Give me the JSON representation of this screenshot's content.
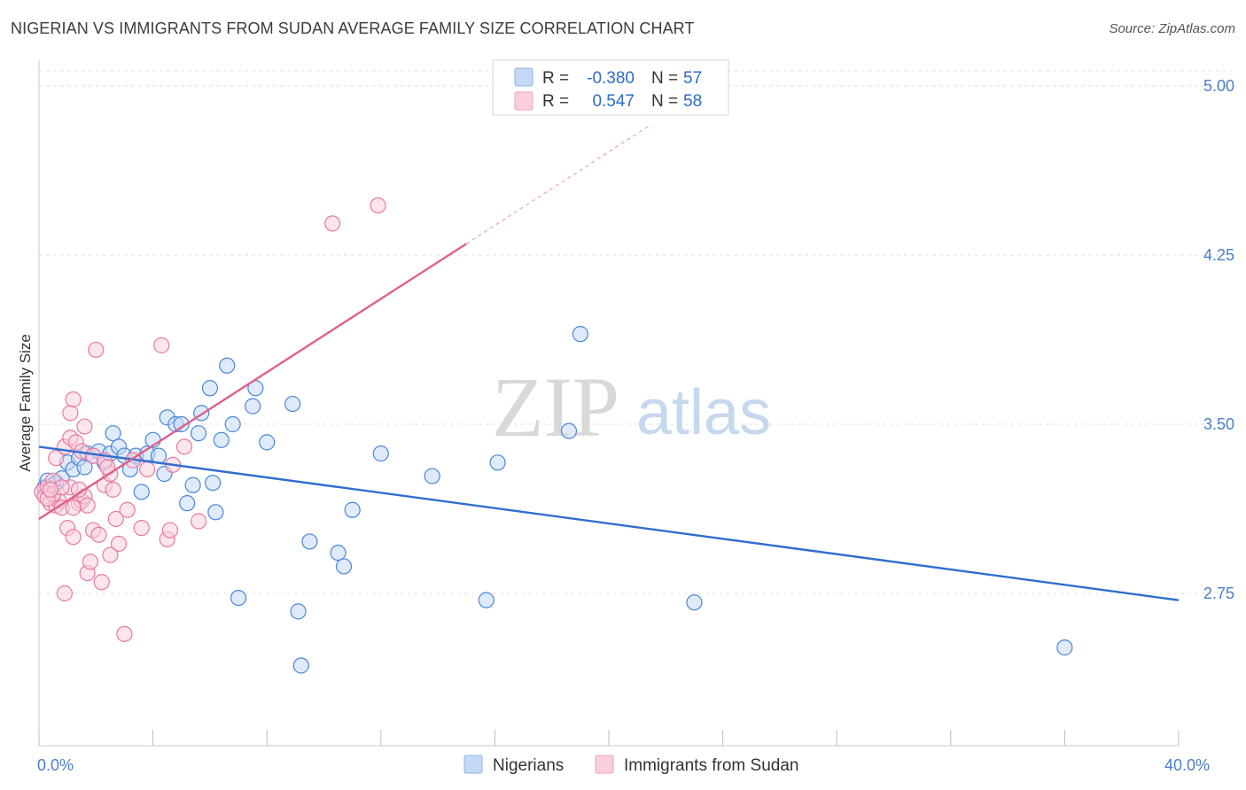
{
  "header": {
    "title": "NIGERIAN VS IMMIGRANTS FROM SUDAN AVERAGE FAMILY SIZE CORRELATION CHART",
    "source": "Source: ZipAtlas.com"
  },
  "watermark": {
    "zip": "ZIP",
    "atlas": "atlas"
  },
  "legend": {
    "rows": [
      {
        "r_label": "R =",
        "r_value": "-0.380",
        "n_label": "N =",
        "n_value": "57",
        "color": "#8fb4e8",
        "fill": "#c5d9f5"
      },
      {
        "r_label": "R =",
        "r_value": "0.547",
        "n_label": "N =",
        "n_value": "58",
        "color": "#f1a3bc",
        "fill": "#f9cfdc"
      }
    ]
  },
  "chart_data": {
    "type": "scatter",
    "ylabel": "Average Family Size",
    "xlim": [
      0,
      40
    ],
    "ylim": [
      2.2,
      5.1
    ],
    "x_tick_labels": [
      {
        "value": 0,
        "label": "0.0%"
      },
      {
        "value": 40,
        "label": "40.0%"
      }
    ],
    "y_ticks": [
      {
        "value": 2.75,
        "label": "2.75"
      },
      {
        "value": 3.5,
        "label": "3.50"
      },
      {
        "value": 4.25,
        "label": "4.25"
      },
      {
        "value": 5.0,
        "label": "5.00"
      }
    ],
    "x_minor_ticks": [
      0,
      4,
      8,
      12,
      16,
      20,
      24,
      28,
      32,
      36,
      40
    ],
    "series": [
      {
        "name": "Nigerians",
        "color": "#4a86d8",
        "fill": "#c5d9f5",
        "trend_color": "#2f6ecf",
        "trend": {
          "x0": 0,
          "y0": 3.4,
          "x1": 40,
          "y1": 2.72,
          "dash_to": null
        },
        "points": [
          [
            0.2,
            3.22
          ],
          [
            0.3,
            3.25
          ],
          [
            0.4,
            3.2
          ],
          [
            0.5,
            3.23
          ],
          [
            0.6,
            3.24
          ],
          [
            0.8,
            3.26
          ],
          [
            1.0,
            3.33
          ],
          [
            1.2,
            3.3
          ],
          [
            1.4,
            3.35
          ],
          [
            1.6,
            3.31
          ],
          [
            1.7,
            3.37
          ],
          [
            1.9,
            3.36
          ],
          [
            2.1,
            3.38
          ],
          [
            2.3,
            3.33
          ],
          [
            2.5,
            3.37
          ],
          [
            2.6,
            3.46
          ],
          [
            2.8,
            3.4
          ],
          [
            3.0,
            3.36
          ],
          [
            3.2,
            3.3
          ],
          [
            3.4,
            3.36
          ],
          [
            3.6,
            3.2
          ],
          [
            3.8,
            3.37
          ],
          [
            4.0,
            3.43
          ],
          [
            4.2,
            3.36
          ],
          [
            4.4,
            3.28
          ],
          [
            4.5,
            3.53
          ],
          [
            4.8,
            3.5
          ],
          [
            5.0,
            3.5
          ],
          [
            5.2,
            3.15
          ],
          [
            5.4,
            3.23
          ],
          [
            5.6,
            3.46
          ],
          [
            5.7,
            3.55
          ],
          [
            6.0,
            3.66
          ],
          [
            6.1,
            3.24
          ],
          [
            6.2,
            3.11
          ],
          [
            6.4,
            3.43
          ],
          [
            6.6,
            3.76
          ],
          [
            6.8,
            3.5
          ],
          [
            7.0,
            2.73
          ],
          [
            7.5,
            3.58
          ],
          [
            7.6,
            3.66
          ],
          [
            8.0,
            3.42
          ],
          [
            8.9,
            3.59
          ],
          [
            9.2,
            2.43
          ],
          [
            9.5,
            2.98
          ],
          [
            9.1,
            2.67
          ],
          [
            10.5,
            2.93
          ],
          [
            10.7,
            2.87
          ],
          [
            11.0,
            3.12
          ],
          [
            12.0,
            3.37
          ],
          [
            13.8,
            3.27
          ],
          [
            15.7,
            2.72
          ],
          [
            16.1,
            3.33
          ],
          [
            18.6,
            3.47
          ],
          [
            19.0,
            3.9
          ],
          [
            23.0,
            2.71
          ],
          [
            36.0,
            2.51
          ]
        ]
      },
      {
        "name": "Immigrants from Sudan",
        "color": "#e87aa0",
        "fill": "#f9cfdc",
        "trend_color": "#e0608b",
        "trend": {
          "x0": 0,
          "y0": 3.08,
          "x1": 15,
          "y1": 4.3,
          "dash_to": {
            "x": 21.5,
            "y": 4.83
          }
        },
        "points": [
          [
            0.1,
            3.2
          ],
          [
            0.2,
            3.18
          ],
          [
            0.3,
            3.22
          ],
          [
            0.4,
            3.15
          ],
          [
            0.5,
            3.25
          ],
          [
            0.6,
            3.14
          ],
          [
            0.6,
            3.35
          ],
          [
            0.7,
            3.16
          ],
          [
            0.8,
            3.13
          ],
          [
            0.9,
            2.75
          ],
          [
            0.9,
            3.4
          ],
          [
            1.0,
            3.04
          ],
          [
            1.1,
            3.44
          ],
          [
            1.1,
            3.22
          ],
          [
            1.2,
            3.0
          ],
          [
            1.1,
            3.55
          ],
          [
            1.2,
            3.61
          ],
          [
            1.3,
            3.42
          ],
          [
            1.4,
            3.15
          ],
          [
            1.5,
            3.38
          ],
          [
            1.5,
            3.16
          ],
          [
            1.6,
            3.18
          ],
          [
            1.6,
            3.49
          ],
          [
            1.7,
            2.84
          ],
          [
            1.7,
            3.14
          ],
          [
            1.8,
            2.89
          ],
          [
            1.9,
            3.36
          ],
          [
            1.9,
            3.03
          ],
          [
            2.0,
            3.83
          ],
          [
            2.1,
            3.01
          ],
          [
            2.2,
            2.8
          ],
          [
            2.3,
            3.23
          ],
          [
            2.3,
            3.34
          ],
          [
            2.5,
            3.28
          ],
          [
            2.6,
            3.21
          ],
          [
            2.7,
            3.08
          ],
          [
            2.8,
            2.97
          ],
          [
            3.0,
            2.57
          ],
          [
            3.1,
            3.12
          ],
          [
            3.3,
            3.34
          ],
          [
            3.6,
            3.04
          ],
          [
            3.8,
            3.3
          ],
          [
            4.3,
            3.85
          ],
          [
            4.5,
            2.99
          ],
          [
            4.6,
            3.03
          ],
          [
            4.7,
            3.32
          ],
          [
            5.1,
            3.4
          ],
          [
            5.6,
            3.07
          ],
          [
            10.3,
            4.39
          ],
          [
            11.9,
            4.47
          ],
          [
            2.5,
            2.92
          ],
          [
            1.4,
            3.21
          ],
          [
            0.5,
            3.19
          ],
          [
            0.3,
            3.17
          ],
          [
            2.4,
            3.31
          ],
          [
            1.2,
            3.13
          ],
          [
            0.8,
            3.22
          ],
          [
            0.4,
            3.21
          ]
        ]
      }
    ]
  }
}
